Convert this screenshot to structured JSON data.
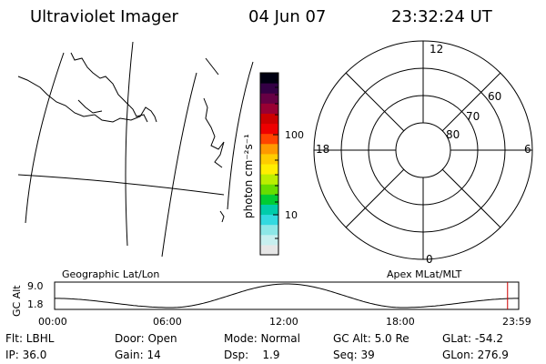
{
  "header": {
    "title": "Ultraviolet Imager",
    "date": "04 Jun 07",
    "time": "23:32:24 UT"
  },
  "colorbar": {
    "unit": "photon cm⁻²s⁻¹",
    "ticks": [
      "100",
      "10"
    ],
    "colors": [
      "#e6e6e6",
      "#c7efef",
      "#8de7e7",
      "#33d9e0",
      "#00ccaa",
      "#00cc33",
      "#66dd00",
      "#bbee00",
      "#ffee00",
      "#ffcc00",
      "#ff9900",
      "#ff4400",
      "#ee0000",
      "#cc0000",
      "#990033",
      "#660044",
      "#330044",
      "#000011"
    ]
  },
  "polar": {
    "mlt_labels": {
      "top": "12",
      "left": "18",
      "right": "6",
      "bottom": "0"
    },
    "lat_labels": [
      "60",
      "70",
      "80"
    ]
  },
  "timeline": {
    "left_label": "Geographic Lat/Lon",
    "right_label": "Apex MLat/MLT",
    "yaxis_label": "GC Alt",
    "y_ticks": [
      "9.0",
      "1.8"
    ],
    "x_ticks": [
      "00:00",
      "06:00",
      "12:00",
      "18:00",
      "23:59"
    ],
    "alt_range": [
      1.8,
      9.0
    ],
    "alt_samples": [
      4.6,
      1.8,
      9.0,
      1.8,
      4.6
    ],
    "current_fraction": 0.976,
    "marker_color": "#cc0000"
  },
  "info": {
    "row1": [
      "Flt: LBHL",
      "Door: Open",
      "Mode: Normal",
      "GC Alt: 5.0 Re",
      "GLat: -54.2"
    ],
    "row2": [
      "IP: 36.0",
      "Gain: 14",
      "Dsp:    1.9",
      "Seq: 39",
      "GLon: 276.9"
    ]
  }
}
